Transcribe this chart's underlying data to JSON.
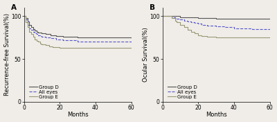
{
  "panel_A": {
    "title": "A",
    "ylabel": "Recurrence-free Survival(%)",
    "xlabel": "Months",
    "xlim": [
      0,
      60
    ],
    "ylim": [
      0,
      110
    ],
    "yticks": [
      0,
      50,
      100
    ],
    "xticks": [
      0,
      20,
      40,
      60
    ],
    "group_D": {
      "x": [
        0,
        1,
        2,
        3,
        4,
        5,
        6,
        7,
        8,
        10,
        12,
        15,
        18,
        22,
        30,
        60
      ],
      "y": [
        100,
        98,
        94,
        90,
        87,
        85,
        83,
        82,
        81,
        80,
        79,
        78,
        77,
        76,
        75,
        75
      ],
      "color": "#555555",
      "linestyle": "-",
      "linewidth": 0.8,
      "label": "Group D"
    },
    "all_eyes": {
      "x": [
        0,
        1,
        2,
        3,
        4,
        5,
        6,
        7,
        8,
        9,
        10,
        12,
        15,
        18,
        22,
        30,
        60
      ],
      "y": [
        100,
        96,
        90,
        86,
        84,
        82,
        80,
        79,
        78,
        77,
        76,
        75,
        74,
        73,
        72,
        70,
        70
      ],
      "color": "#5555cc",
      "linestyle": "--",
      "linewidth": 0.8,
      "label": "All eyes"
    },
    "group_E": {
      "x": [
        0,
        1,
        2,
        3,
        4,
        5,
        6,
        7,
        8,
        9,
        10,
        12,
        14,
        16,
        18,
        20,
        25,
        30,
        60
      ],
      "y": [
        100,
        93,
        87,
        82,
        79,
        76,
        73,
        71,
        70,
        68,
        67,
        66,
        65,
        64,
        64,
        63,
        63,
        63,
        63
      ],
      "color": "#999977",
      "linestyle": "-",
      "linewidth": 0.8,
      "label": "Group E"
    }
  },
  "panel_B": {
    "title": "B",
    "ylabel": "Ocular Survival(%)",
    "xlabel": "Months",
    "xlim": [
      0,
      60
    ],
    "ylim": [
      0,
      110
    ],
    "yticks": [
      0,
      50,
      100
    ],
    "xticks": [
      0,
      20,
      40,
      60
    ],
    "group_D": {
      "x": [
        0,
        5,
        8,
        10,
        15,
        20,
        30,
        40,
        60
      ],
      "y": [
        100,
        100,
        100,
        99,
        99,
        98,
        97,
        97,
        97
      ],
      "color": "#555555",
      "linestyle": "-",
      "linewidth": 0.8,
      "label": "Group D"
    },
    "all_eyes": {
      "x": [
        0,
        5,
        7,
        8,
        10,
        12,
        14,
        16,
        18,
        20,
        22,
        25,
        30,
        35,
        40,
        50,
        60
      ],
      "y": [
        100,
        99,
        98,
        97,
        96,
        95,
        94,
        93,
        92,
        91,
        90,
        89,
        88,
        87,
        86,
        85,
        85
      ],
      "color": "#5555cc",
      "linestyle": "--",
      "linewidth": 0.8,
      "label": "All eyes"
    },
    "group_E": {
      "x": [
        0,
        5,
        7,
        8,
        10,
        12,
        14,
        16,
        18,
        20,
        22,
        25,
        30,
        35,
        40,
        45,
        60
      ],
      "y": [
        100,
        98,
        95,
        93,
        90,
        87,
        84,
        82,
        80,
        78,
        77,
        76,
        75,
        75,
        75,
        75,
        75
      ],
      "color": "#999977",
      "linestyle": "-",
      "linewidth": 0.8,
      "label": "Group E"
    }
  },
  "bg_color": "#f0ede8",
  "legend_fontsize": 5.0,
  "axis_fontsize": 6.0,
  "tick_fontsize": 5.5,
  "title_fontsize": 7.5
}
